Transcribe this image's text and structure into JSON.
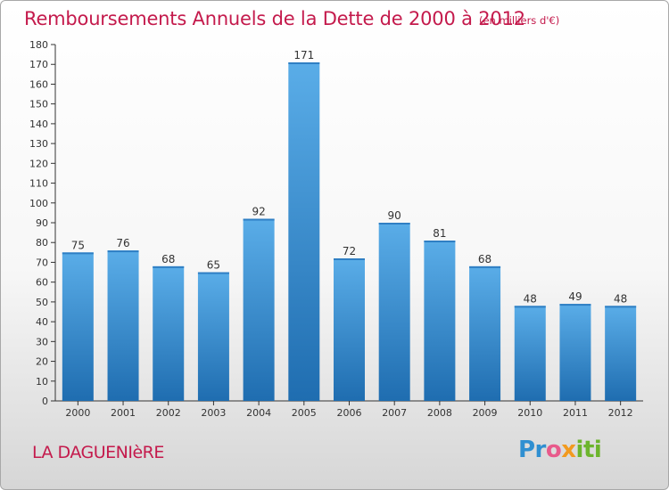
{
  "title": "Remboursements Annuels de la Dette de 2000 à 2012",
  "subtitle": "(en milliers d'€)",
  "place": "LA DAGUENIèRE",
  "logo": {
    "p1": "Pr",
    "p2": "o",
    "p3": "x",
    "p4": "iti"
  },
  "colors": {
    "accent": "#c41a4c",
    "bar_top": "#5aade8",
    "bar_bottom": "#1f6db0"
  },
  "chart_data": {
    "type": "bar",
    "categories": [
      "2000",
      "2001",
      "2002",
      "2003",
      "2004",
      "2005",
      "2006",
      "2007",
      "2008",
      "2009",
      "2010",
      "2011",
      "2012"
    ],
    "values": [
      75,
      76,
      68,
      65,
      92,
      171,
      72,
      90,
      81,
      68,
      48,
      49,
      48
    ],
    "title": "Remboursements Annuels de la Dette de 2000 à 2012",
    "ylim": [
      0,
      180
    ],
    "ytick_step": 10,
    "grid": false,
    "data_labels": true
  }
}
